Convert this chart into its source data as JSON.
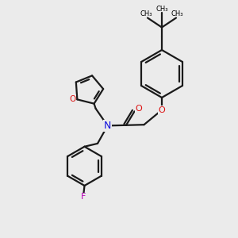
{
  "bg_color": "#ebebeb",
  "bond_color": "#1a1a1a",
  "N_color": "#1010dd",
  "O_color": "#dd1010",
  "F_color": "#bb00bb",
  "lw": 1.6,
  "dbl_off": 0.055,
  "xlim": [
    0,
    10
  ],
  "ylim": [
    0,
    10
  ]
}
